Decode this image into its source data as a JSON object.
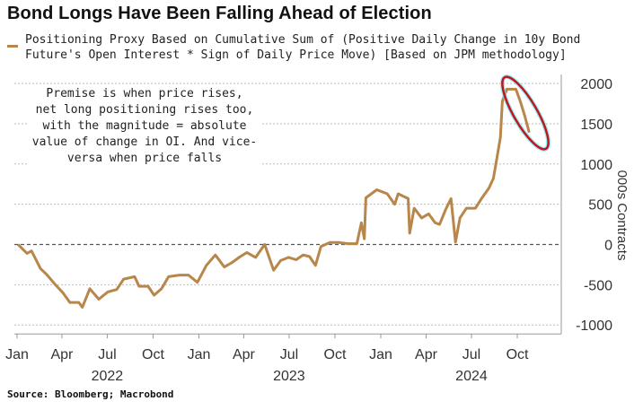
{
  "title": "Bond Longs Have Been Falling Ahead of Election",
  "legend": {
    "lines": [
      "Positioning Proxy Based on Cumulative Sum of (Positive Daily Change in 10y Bond",
      "Future's Open Interest * Sign of Daily Price Move) [Based on JPM methodology]"
    ],
    "color": "#b8864a"
  },
  "annotation": {
    "lines": [
      "Premise is when price rises,",
      "net long positioning rises too,",
      "with the magnitude = absolute",
      "value of change in OI. And vice-",
      "versa when price falls"
    ]
  },
  "highlight": {
    "shape": "ellipse",
    "stroke_color": "#c0161c",
    "glow_color": "#6fe3ef"
  },
  "source": "Source: Bloomberg; Macrobond",
  "chart_data": {
    "type": "line",
    "title": "Bond Longs Have Been Falling Ahead of Election",
    "ylabel": "000s Contracts",
    "ylim": [
      -1000,
      2000
    ],
    "yticks": [
      "2000",
      "1500",
      "1000",
      "500",
      "0",
      "-500",
      "-1000"
    ],
    "ytick_values": [
      2000,
      1500,
      1000,
      500,
      0,
      -500,
      -1000
    ],
    "xticks": [
      "Jan",
      "Apr",
      "Jul",
      "Oct",
      "Jan",
      "Apr",
      "Jul",
      "Oct",
      "Jan",
      "Apr",
      "Jul",
      "Oct"
    ],
    "xtick_dates": [
      "2022-01-01",
      "2022-04-01",
      "2022-07-01",
      "2022-10-01",
      "2023-01-01",
      "2023-04-01",
      "2023-07-01",
      "2023-10-01",
      "2024-01-01",
      "2024-04-01",
      "2024-07-01",
      "2024-10-01"
    ],
    "year_labels": [
      "2022",
      "2023",
      "2024"
    ],
    "grid": true,
    "y_axis_side": "right",
    "series": [
      {
        "color": "#b8864a",
        "x": [
          "2022-01-03",
          "2022-01-21",
          "2022-01-30",
          "2022-02-17",
          "2022-03-01",
          "2022-03-19",
          "2022-04-03",
          "2022-04-17",
          "2022-05-05",
          "2022-05-12",
          "2022-05-27",
          "2022-06-14",
          "2022-07-02",
          "2022-07-20",
          "2022-08-03",
          "2022-08-25",
          "2022-09-03",
          "2022-09-21",
          "2022-10-03",
          "2022-10-18",
          "2022-11-01",
          "2022-11-23",
          "2022-12-11",
          "2022-12-29",
          "2023-01-16",
          "2023-02-03",
          "2023-02-21",
          "2023-03-07",
          "2023-03-25",
          "2023-04-07",
          "2023-04-25",
          "2023-05-13",
          "2023-05-31",
          "2023-06-14",
          "2023-06-30",
          "2023-07-15",
          "2023-07-29",
          "2023-08-11",
          "2023-08-23",
          "2023-09-03",
          "2023-09-21",
          "2023-10-09",
          "2023-10-27",
          "2023-11-14",
          "2023-11-23",
          "2023-11-29",
          "2023-12-02",
          "2023-12-24",
          "2024-01-14",
          "2024-01-29",
          "2024-02-05",
          "2024-02-25",
          "2024-02-28",
          "2024-03-08",
          "2024-03-23",
          "2024-04-06",
          "2024-04-19",
          "2024-04-28",
          "2024-05-10",
          "2024-05-21",
          "2024-05-30",
          "2024-06-08",
          "2024-06-21",
          "2024-07-09",
          "2024-07-21",
          "2024-08-05",
          "2024-08-14",
          "2024-08-19",
          "2024-08-28",
          "2024-09-01",
          "2024-09-10",
          "2024-09-19",
          "2024-09-28",
          "2024-10-07",
          "2024-10-16",
          "2024-10-25"
        ],
        "y": [
          0,
          -110,
          -80,
          -300,
          -370,
          -500,
          -600,
          -720,
          -720,
          -780,
          -550,
          -680,
          -590,
          -560,
          -430,
          -400,
          -520,
          -520,
          -630,
          -550,
          -400,
          -380,
          -380,
          -470,
          -260,
          -130,
          -280,
          -230,
          -150,
          -100,
          -160,
          0,
          -320,
          -200,
          -160,
          -190,
          -130,
          -150,
          -260,
          -25,
          25,
          25,
          10,
          10,
          270,
          70,
          580,
          680,
          630,
          500,
          630,
          570,
          140,
          450,
          330,
          380,
          270,
          250,
          430,
          570,
          30,
          330,
          450,
          450,
          570,
          700,
          820,
          1000,
          1330,
          1780,
          1930,
          1930,
          1930,
          1780,
          1600,
          1390
        ]
      }
    ]
  }
}
